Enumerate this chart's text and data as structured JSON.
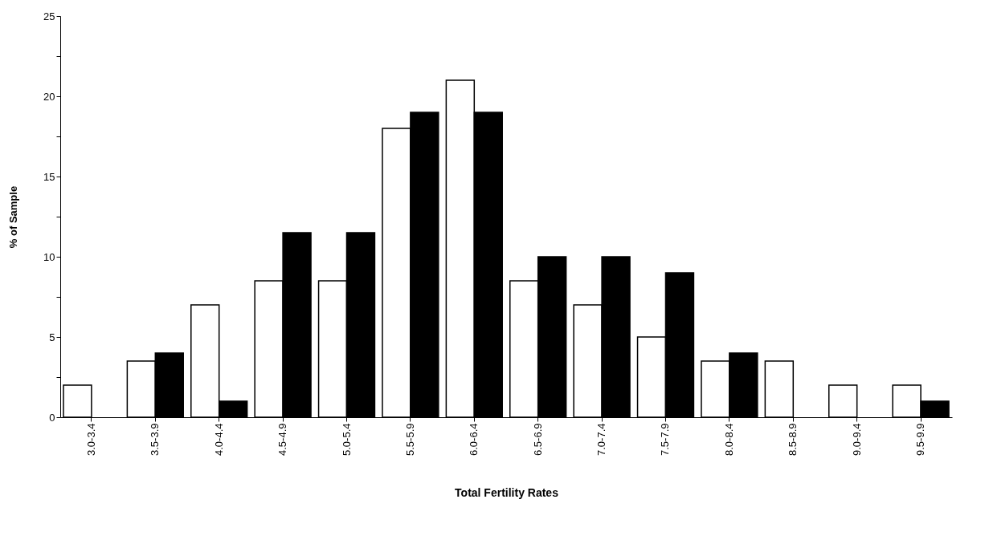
{
  "chart_data": {
    "type": "bar",
    "xlabel": "Total Fertility Rates",
    "ylabel": "% of Sample",
    "categories": [
      "3.0-3.4",
      "3.5-3.9",
      "4.0-4.4",
      "4.5-4.9",
      "5.0-5.4",
      "5.5-5.9",
      "6.0-6.4",
      "6.5-6.9",
      "7.0-7.4",
      "7.5-7.9",
      "8.0-8.4",
      "8.5-8.9",
      "9.0-9.4",
      "9.5-9.9"
    ],
    "series": [
      {
        "color": "#ffffff",
        "values": [
          2,
          3.5,
          7,
          8.5,
          8.5,
          18,
          21,
          8.5,
          7,
          5,
          3.5,
          3.5,
          2,
          2
        ]
      },
      {
        "color": "#000000",
        "values": [
          null,
          4,
          1,
          11.5,
          11.5,
          19,
          19,
          10,
          10,
          9,
          4,
          null,
          null,
          1
        ]
      }
    ],
    "ylim": [
      0,
      25
    ],
    "yticks": [
      0,
      {
        "value": 2.5,
        "label": null
      },
      5,
      {
        "value": 7.5,
        "label": null
      },
      10,
      {
        "value": 12.5,
        "label": null
      },
      15,
      {
        "value": 17.5,
        "label": null
      },
      20,
      {
        "value": 22.5,
        "label": null
      },
      25
    ],
    "grid": false,
    "legend": false
  }
}
